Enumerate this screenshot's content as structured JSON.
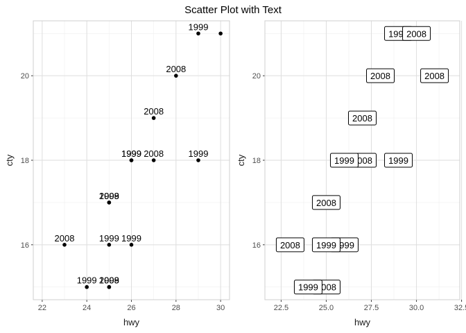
{
  "title": "Scatter Plot with Text",
  "chart_data": [
    {
      "type": "scatter",
      "xlabel": "hwy",
      "ylabel": "cty",
      "xlim": [
        21.6,
        30.4
      ],
      "ylim": [
        14.7,
        21.3
      ],
      "xticks": [
        22,
        24,
        26,
        28,
        30
      ],
      "yticks": [
        16,
        18,
        20
      ],
      "grid": true,
      "points": [
        {
          "x": 29,
          "y": 21,
          "label": "1999"
        },
        {
          "x": 30,
          "y": 21,
          "label": ""
        },
        {
          "x": 28,
          "y": 20,
          "label": "2008"
        },
        {
          "x": 27,
          "y": 19,
          "label": "2008"
        },
        {
          "x": 26,
          "y": 18,
          "label": "1999"
        },
        {
          "x": 26,
          "y": 18,
          "label": "1999"
        },
        {
          "x": 27,
          "y": 18,
          "label": "2008"
        },
        {
          "x": 29,
          "y": 18,
          "label": "1999"
        },
        {
          "x": 25,
          "y": 17,
          "label": "2008"
        },
        {
          "x": 25,
          "y": 17,
          "label": "1999"
        },
        {
          "x": 23,
          "y": 16,
          "label": "2008"
        },
        {
          "x": 25,
          "y": 16,
          "label": "1999"
        },
        {
          "x": 26,
          "y": 16,
          "label": "1999"
        },
        {
          "x": 24,
          "y": 15,
          "label": "1999"
        },
        {
          "x": 25,
          "y": 15,
          "label": "1999"
        },
        {
          "x": 25,
          "y": 15,
          "label": "2008"
        }
      ]
    },
    {
      "type": "scatter",
      "style": "label-boxes",
      "xlabel": "hwy",
      "ylabel": "cty",
      "xlim": [
        21.6,
        32.4
      ],
      "ylim": [
        14.7,
        21.3
      ],
      "xticks": [
        22.5,
        25.0,
        27.5,
        30.0,
        32.5
      ],
      "xtick_labels": [
        "22.5",
        "25.0",
        "27.5",
        "30.0",
        "32.5"
      ],
      "yticks": [
        16,
        18,
        20
      ],
      "grid": true,
      "labels": [
        {
          "x": 29,
          "y": 21,
          "label": "1999"
        },
        {
          "x": 30,
          "y": 21,
          "label": "2008"
        },
        {
          "x": 28,
          "y": 20,
          "label": "2008"
        },
        {
          "x": 31,
          "y": 20,
          "label": "2008"
        },
        {
          "x": 27,
          "y": 19,
          "label": "2008"
        },
        {
          "x": 27,
          "y": 18,
          "label": "2008"
        },
        {
          "x": 26,
          "y": 18,
          "label": "1999"
        },
        {
          "x": 29,
          "y": 18,
          "label": "1999"
        },
        {
          "x": 25,
          "y": 17,
          "label": "2008"
        },
        {
          "x": 23,
          "y": 16,
          "label": "2008"
        },
        {
          "x": 26,
          "y": 16,
          "label": "1999"
        },
        {
          "x": 25,
          "y": 16,
          "label": "1999"
        },
        {
          "x": 25,
          "y": 15,
          "label": "2008"
        },
        {
          "x": 24,
          "y": 15,
          "label": "1999"
        }
      ]
    }
  ]
}
